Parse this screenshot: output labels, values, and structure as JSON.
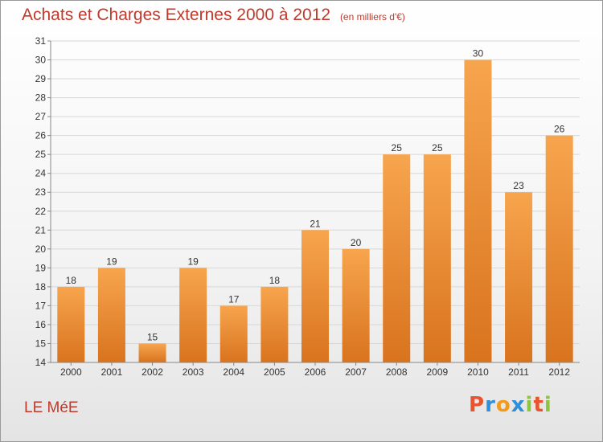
{
  "header": {
    "title": "Achats et Charges Externes 2000 à 2012",
    "unit": "(en milliers d'€)"
  },
  "footer": {
    "commune": "LE MéE",
    "brand": "Proxiti"
  },
  "colors": {
    "title": "#c0392b",
    "bar_top": "#f7a54e",
    "bar_bottom": "#d9731e",
    "brand_letters": [
      "#e8542f",
      "#2f8fd8",
      "#f29a1c",
      "#2f8fd8",
      "#8cc63f",
      "#e8542f",
      "#8cc63f"
    ]
  },
  "chart_data": {
    "type": "bar",
    "title": "Achats et Charges Externes 2000 à 2012",
    "subtitle": "(en milliers d'€)",
    "categories": [
      "2000",
      "2001",
      "2002",
      "2003",
      "2004",
      "2005",
      "2006",
      "2007",
      "2008",
      "2009",
      "2010",
      "2011",
      "2012"
    ],
    "values": [
      18,
      19,
      15,
      19,
      17,
      18,
      21,
      20,
      25,
      25,
      30,
      23,
      26
    ],
    "ylim": [
      14,
      31
    ],
    "yticks": [
      14,
      15,
      16,
      17,
      18,
      19,
      20,
      21,
      22,
      23,
      24,
      25,
      26,
      27,
      28,
      29,
      30,
      31
    ],
    "grid": true,
    "legend": "none"
  }
}
